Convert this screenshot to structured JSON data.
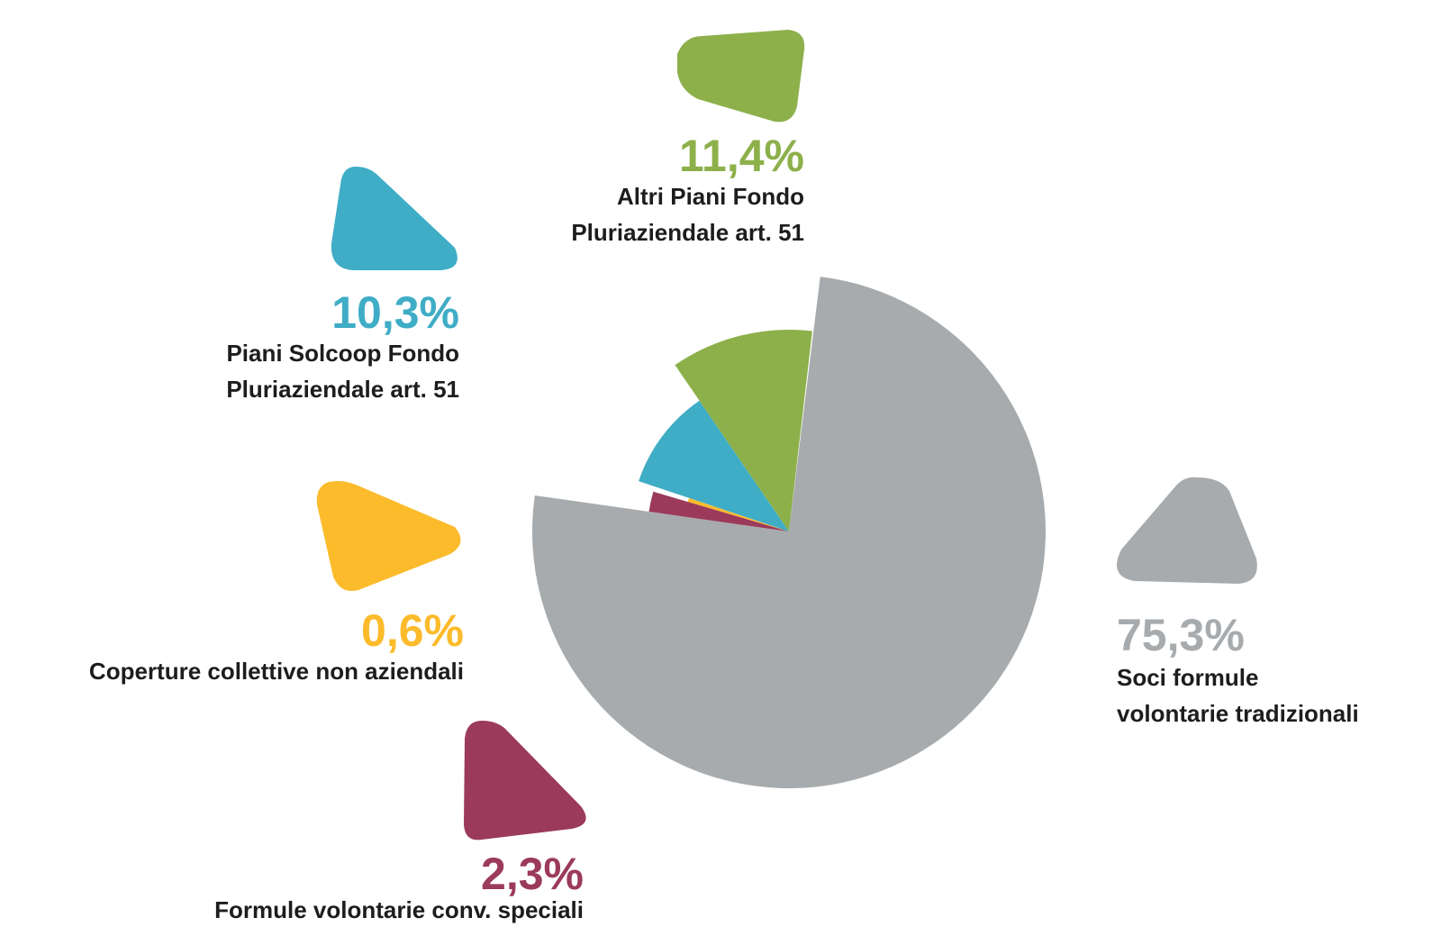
{
  "chart_data": {
    "type": "pie",
    "categories": [
      "Soci formule\nvolontarie tradizionali",
      "Formule volontarie conv. speciali",
      "Coperture collettive non aziendali",
      "Piani Solcoop Fondo\nPluriaziendale art. 51",
      "Altri Piani Fondo\nPluriaziendale art. 51"
    ],
    "values": [
      75.3,
      2.3,
      0.6,
      10.3,
      11.4
    ],
    "value_labels": [
      "75,3%",
      "2,3%",
      "0,6%",
      "10,3%",
      "11,4%"
    ],
    "colors": [
      "#a7abad",
      "#9b3a5a",
      "#fbbb2b",
      "#3fadc6",
      "#8db04b"
    ]
  }
}
